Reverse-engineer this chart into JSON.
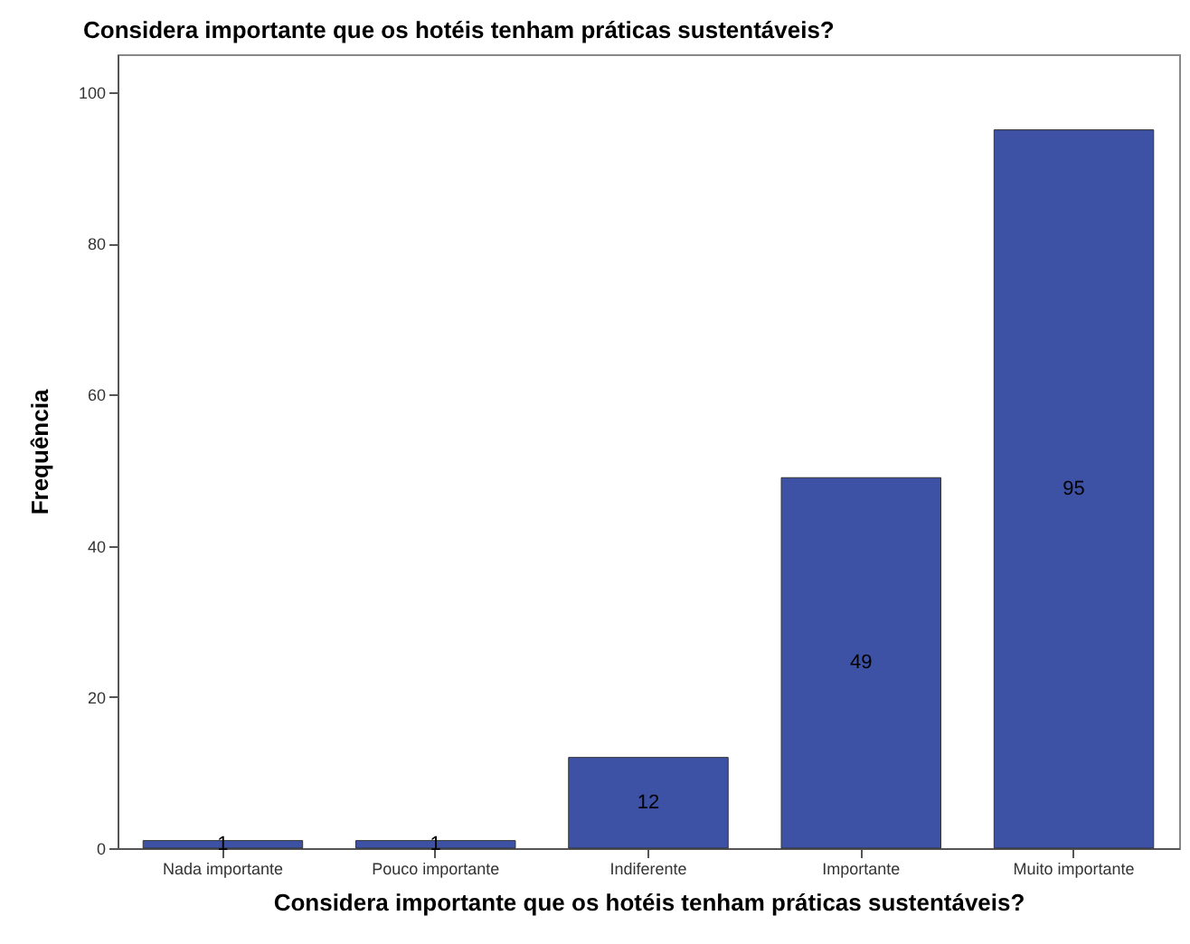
{
  "chart_data": {
    "type": "bar",
    "title": "Considera importante que os hotéis tenham práticas sustentáveis?",
    "xlabel": "Considera importante que os hotéis tenham práticas sustentáveis?",
    "ylabel": "Frequência",
    "categories": [
      "Nada importante",
      "Pouco importante",
      "Indiferente",
      "Importante",
      "Muito importante"
    ],
    "values": [
      1,
      1,
      12,
      49,
      95
    ],
    "color": "#3d51a5",
    "data_labels": true,
    "ylim": [
      0,
      105
    ],
    "yticks": [
      0,
      20,
      40,
      60,
      80,
      100
    ],
    "grid": false
  }
}
